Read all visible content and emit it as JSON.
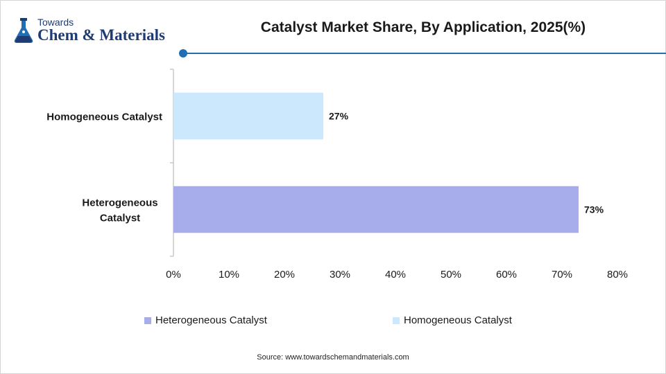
{
  "brand": {
    "small": "Towards",
    "big": "Chem & Materials",
    "logo_icon": "flask-icon"
  },
  "chart_data": {
    "type": "bar",
    "orientation": "horizontal",
    "title": "Catalyst Market Share, By Application, 2025(%)",
    "xlabel": "",
    "ylabel": "",
    "categories": [
      "Homogeneous Catalyst",
      "Heterogeneous Catalyst"
    ],
    "values": [
      27,
      73
    ],
    "value_labels": [
      "27%",
      "73%"
    ],
    "colors": [
      "#cce8fc",
      "#a7aceb"
    ],
    "xlim": [
      0,
      80
    ],
    "x_ticks": [
      0,
      10,
      20,
      30,
      40,
      50,
      60,
      70,
      80
    ],
    "x_tick_labels": [
      "0%",
      "10%",
      "20%",
      "30%",
      "40%",
      "50%",
      "60%",
      "70%",
      "80%"
    ],
    "grid": false,
    "legend_position": "bottom",
    "legend": [
      {
        "label": "Heterogeneous Catalyst",
        "color": "#a7aceb"
      },
      {
        "label": "Homogeneous Catalyst",
        "color": "#cce8fc"
      }
    ]
  },
  "source": "Source:  www.towardschemandmaterials.com",
  "accent_color": "#1f6fb2"
}
